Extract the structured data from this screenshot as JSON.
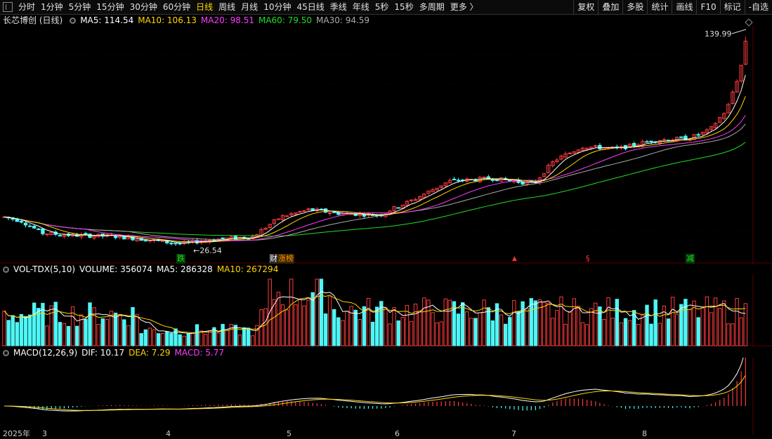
{
  "toolbar": {
    "periods": [
      "分时",
      "1分钟",
      "5分钟",
      "15分钟",
      "30分钟",
      "60分钟",
      "日线",
      "周线",
      "月线",
      "10分钟",
      "45日线",
      "季线",
      "年线",
      "5秒",
      "15秒",
      "多周期",
      "更多 〉"
    ],
    "active_index": 6,
    "right_buttons": [
      "复权",
      "叠加",
      "多股",
      "统计",
      "画线",
      "F10",
      "标记",
      "-自选"
    ]
  },
  "main_panel": {
    "stock_name": "长芯博创 (日线)",
    "indicators": [
      {
        "label": "MA5: 114.54",
        "color": "#ffffff"
      },
      {
        "label": "MA10: 106.13",
        "color": "#ffd700"
      },
      {
        "label": "MA20: 98.51",
        "color": "#ff3cff"
      },
      {
        "label": "MA60: 79.50",
        "color": "#22dd22"
      },
      {
        "label": "MA30: 94.59",
        "color": "#aaaaaa"
      }
    ],
    "high_label": "139.99",
    "low_label": "26.54",
    "markers": [
      {
        "text": "跌",
        "color": "#22dd22"
      },
      {
        "text": "财",
        "color": "#ffffff"
      },
      {
        "text": "涨榜",
        "color": "#ff9900"
      },
      {
        "text": "§",
        "color": "#ff3333"
      },
      {
        "text": "减",
        "color": "#22dd22"
      }
    ]
  },
  "volume_panel": {
    "indicator": "VOL-TDX(5,10)",
    "volume": "VOLUME: 356074",
    "ma5": "MA5: 286328",
    "ma10": "MA10: 267294",
    "colors": {
      "volume": "#ffffff",
      "ma5": "#ffffff",
      "ma10": "#ffd700"
    }
  },
  "macd_panel": {
    "indicator": "MACD(12,26,9)",
    "dif": "DIF: 10.17",
    "dea": "DEA: 7.29",
    "macd": "MACD: 5.77",
    "colors": {
      "dif": "#ffffff",
      "dea": "#ffd700",
      "macd": "#ff3cff"
    }
  },
  "date_axis": [
    "2025年",
    "3",
    "4",
    "5",
    "6",
    "7",
    "8"
  ],
  "colors": {
    "up": "#ff3b3b",
    "down": "#4ef6f6",
    "ma5": "#ffffff",
    "ma10": "#ffd700",
    "ma20": "#ff3cff",
    "ma60": "#22dd22",
    "ma30": "#aaaaaa",
    "grid": "#3a0000"
  }
}
